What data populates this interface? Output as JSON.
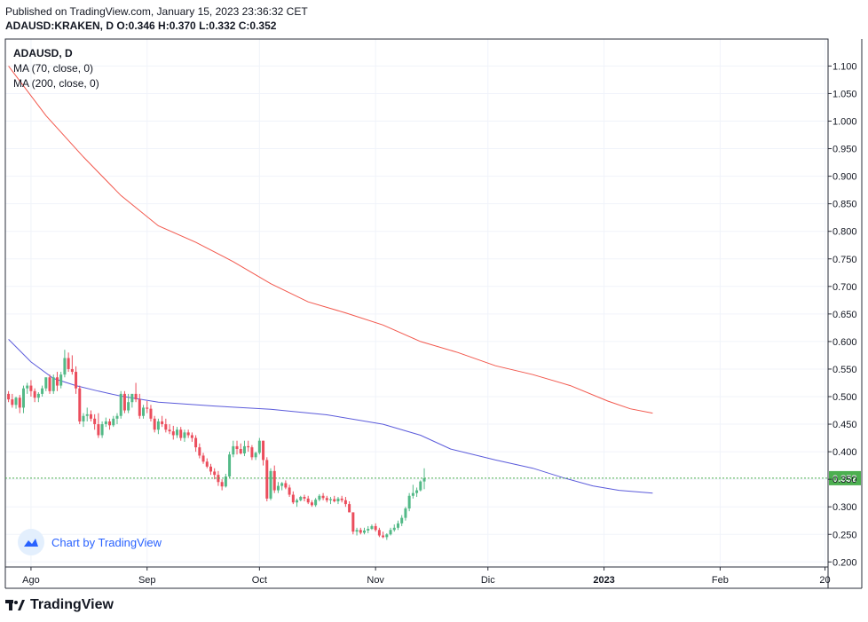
{
  "header": {
    "published": "Published on TradingView.com, January 15, 2023 23:36:32 CET",
    "symbol_exchange": "ADAUSD:KRAKEN, D",
    "ohlc": "O:0.346 H:0.370 L:0.332 C:0.352"
  },
  "legend": {
    "title": "ADAUSD, D",
    "ma70": "MA (70, close, 0)",
    "ma200": "MA (200, close, 0)"
  },
  "watermark": {
    "text": "Chart by TradingView"
  },
  "brand": {
    "text": "TradingView"
  },
  "colors": {
    "up": "#26a69a",
    "up_fill": "#53b987",
    "down": "#eb4d5c",
    "ma70": "#5b5bdb",
    "ma200": "#f2574c",
    "last_price_bg": "#4caf50"
  },
  "chart_data": {
    "type": "candlestick",
    "symbol": "ADAUSD",
    "interval": "D",
    "last_price": 0.352,
    "ylim": [
      0.19,
      1.12
    ],
    "y_ticks": [
      "1.100",
      "1.050",
      "1.000",
      "0.950",
      "0.900",
      "0.850",
      "0.800",
      "0.750",
      "0.700",
      "0.650",
      "0.600",
      "0.550",
      "0.500",
      "0.450",
      "0.400",
      "0.350",
      "0.300",
      "0.250",
      "0.200"
    ],
    "x_ticks": [
      {
        "label": "Ago",
        "day": 6
      },
      {
        "label": "Sep",
        "day": 37
      },
      {
        "label": "Oct",
        "day": 67
      },
      {
        "label": "Nov",
        "day": 98
      },
      {
        "label": "Dic",
        "day": 128
      },
      {
        "label": "2023",
        "day": 159
      },
      {
        "label": "Feb",
        "day": 190
      },
      {
        "label": "20",
        "day": 218
      }
    ],
    "candles": [
      [
        0.505,
        0.51,
        0.49,
        0.495
      ],
      [
        0.495,
        0.505,
        0.48,
        0.485
      ],
      [
        0.485,
        0.5,
        0.478,
        0.498
      ],
      [
        0.498,
        0.503,
        0.47,
        0.48
      ],
      [
        0.48,
        0.52,
        0.47,
        0.515
      ],
      [
        0.515,
        0.525,
        0.505,
        0.52
      ],
      [
        0.52,
        0.53,
        0.5,
        0.51
      ],
      [
        0.51,
        0.515,
        0.49,
        0.498
      ],
      [
        0.498,
        0.508,
        0.49,
        0.505
      ],
      [
        0.505,
        0.52,
        0.5,
        0.515
      ],
      [
        0.515,
        0.535,
        0.51,
        0.535
      ],
      [
        0.535,
        0.54,
        0.505,
        0.51
      ],
      [
        0.51,
        0.54,
        0.505,
        0.535
      ],
      [
        0.535,
        0.545,
        0.51,
        0.52
      ],
      [
        0.52,
        0.545,
        0.515,
        0.54
      ],
      [
        0.54,
        0.585,
        0.535,
        0.57
      ],
      [
        0.57,
        0.58,
        0.545,
        0.55
      ],
      [
        0.55,
        0.575,
        0.54,
        0.545
      ],
      [
        0.545,
        0.555,
        0.505,
        0.515
      ],
      [
        0.515,
        0.52,
        0.45,
        0.455
      ],
      [
        0.455,
        0.47,
        0.445,
        0.465
      ],
      [
        0.465,
        0.48,
        0.455,
        0.468
      ],
      [
        0.468,
        0.475,
        0.455,
        0.46
      ],
      [
        0.46,
        0.468,
        0.44,
        0.45
      ],
      [
        0.45,
        0.47,
        0.425,
        0.43
      ],
      [
        0.43,
        0.455,
        0.425,
        0.45
      ],
      [
        0.45,
        0.462,
        0.445,
        0.455
      ],
      [
        0.455,
        0.46,
        0.44,
        0.448
      ],
      [
        0.448,
        0.465,
        0.445,
        0.46
      ],
      [
        0.46,
        0.47,
        0.45,
        0.465
      ],
      [
        0.465,
        0.51,
        0.46,
        0.505
      ],
      [
        0.505,
        0.51,
        0.47,
        0.475
      ],
      [
        0.475,
        0.505,
        0.47,
        0.49
      ],
      [
        0.49,
        0.505,
        0.48,
        0.505
      ],
      [
        0.505,
        0.525,
        0.49,
        0.495
      ],
      [
        0.495,
        0.505,
        0.46,
        0.465
      ],
      [
        0.465,
        0.485,
        0.46,
        0.48
      ],
      [
        0.48,
        0.492,
        0.47,
        0.478
      ],
      [
        0.478,
        0.485,
        0.455,
        0.46
      ],
      [
        0.46,
        0.465,
        0.435,
        0.44
      ],
      [
        0.44,
        0.46,
        0.432,
        0.455
      ],
      [
        0.455,
        0.465,
        0.445,
        0.45
      ],
      [
        0.45,
        0.46,
        0.435,
        0.44
      ],
      [
        0.44,
        0.45,
        0.432,
        0.437
      ],
      [
        0.437,
        0.447,
        0.422,
        0.43
      ],
      [
        0.43,
        0.445,
        0.425,
        0.44
      ],
      [
        0.44,
        0.445,
        0.42,
        0.425
      ],
      [
        0.425,
        0.44,
        0.418,
        0.435
      ],
      [
        0.435,
        0.44,
        0.425,
        0.43
      ],
      [
        0.43,
        0.435,
        0.418,
        0.425
      ],
      [
        0.425,
        0.43,
        0.4,
        0.408
      ],
      [
        0.408,
        0.415,
        0.388,
        0.393
      ],
      [
        0.393,
        0.398,
        0.378,
        0.382
      ],
      [
        0.382,
        0.388,
        0.37,
        0.373
      ],
      [
        0.373,
        0.378,
        0.358,
        0.364
      ],
      [
        0.364,
        0.37,
        0.35,
        0.358
      ],
      [
        0.358,
        0.365,
        0.338,
        0.345
      ],
      [
        0.345,
        0.35,
        0.33,
        0.337
      ],
      [
        0.337,
        0.36,
        0.335,
        0.355
      ],
      [
        0.355,
        0.4,
        0.352,
        0.395
      ],
      [
        0.395,
        0.42,
        0.39,
        0.41
      ],
      [
        0.41,
        0.42,
        0.395,
        0.405
      ],
      [
        0.405,
        0.415,
        0.395,
        0.397
      ],
      [
        0.397,
        0.42,
        0.392,
        0.41
      ],
      [
        0.41,
        0.42,
        0.4,
        0.408
      ],
      [
        0.408,
        0.412,
        0.385,
        0.39
      ],
      [
        0.39,
        0.4,
        0.385,
        0.398
      ],
      [
        0.398,
        0.425,
        0.395,
        0.42
      ],
      [
        0.42,
        0.42,
        0.375,
        0.385
      ],
      [
        0.385,
        0.39,
        0.31,
        0.315
      ],
      [
        0.315,
        0.37,
        0.312,
        0.365
      ],
      [
        0.365,
        0.375,
        0.325,
        0.33
      ],
      [
        0.33,
        0.345,
        0.325,
        0.338
      ],
      [
        0.338,
        0.345,
        0.33,
        0.343
      ],
      [
        0.343,
        0.348,
        0.332,
        0.335
      ],
      [
        0.335,
        0.34,
        0.318,
        0.322
      ],
      [
        0.322,
        0.328,
        0.305,
        0.308
      ],
      [
        0.308,
        0.315,
        0.3,
        0.312
      ],
      [
        0.312,
        0.32,
        0.31,
        0.318
      ],
      [
        0.318,
        0.322,
        0.31,
        0.315
      ],
      [
        0.315,
        0.32,
        0.305,
        0.308
      ],
      [
        0.308,
        0.312,
        0.3,
        0.303
      ],
      [
        0.303,
        0.316,
        0.3,
        0.313
      ],
      [
        0.313,
        0.323,
        0.31,
        0.32
      ],
      [
        0.32,
        0.325,
        0.312,
        0.316
      ],
      [
        0.316,
        0.32,
        0.308,
        0.312
      ],
      [
        0.312,
        0.318,
        0.305,
        0.314
      ],
      [
        0.314,
        0.32,
        0.308,
        0.31
      ],
      [
        0.31,
        0.318,
        0.305,
        0.315
      ],
      [
        0.315,
        0.32,
        0.308,
        0.312
      ],
      [
        0.312,
        0.318,
        0.3,
        0.305
      ],
      [
        0.305,
        0.31,
        0.29,
        0.29
      ],
      [
        0.29,
        0.29,
        0.25,
        0.255
      ],
      [
        0.255,
        0.262,
        0.248,
        0.258
      ],
      [
        0.258,
        0.262,
        0.25,
        0.253
      ],
      [
        0.253,
        0.262,
        0.25,
        0.257
      ],
      [
        0.257,
        0.265,
        0.252,
        0.26
      ],
      [
        0.26,
        0.268,
        0.258,
        0.265
      ],
      [
        0.265,
        0.27,
        0.255,
        0.258
      ],
      [
        0.258,
        0.262,
        0.245,
        0.248
      ],
      [
        0.248,
        0.255,
        0.243,
        0.245
      ],
      [
        0.245,
        0.252,
        0.24,
        0.25
      ],
      [
        0.25,
        0.262,
        0.248,
        0.258
      ],
      [
        0.258,
        0.268,
        0.255,
        0.262
      ],
      [
        0.262,
        0.275,
        0.258,
        0.27
      ],
      [
        0.27,
        0.285,
        0.265,
        0.28
      ],
      [
        0.28,
        0.3,
        0.275,
        0.297
      ],
      [
        0.297,
        0.325,
        0.292,
        0.32
      ],
      [
        0.32,
        0.34,
        0.315,
        0.325
      ],
      [
        0.325,
        0.335,
        0.318,
        0.33
      ],
      [
        0.33,
        0.348,
        0.328,
        0.346
      ],
      [
        0.346,
        0.37,
        0.332,
        0.352
      ]
    ],
    "series": [
      {
        "name": "MA (70, close, 0)",
        "color": "#5b5bdb",
        "points": [
          [
            0,
            0.604
          ],
          [
            6,
            0.563
          ],
          [
            12,
            0.533
          ],
          [
            18,
            0.52
          ],
          [
            24,
            0.51
          ],
          [
            30,
            0.501
          ],
          [
            40,
            0.49
          ],
          [
            55,
            0.483
          ],
          [
            70,
            0.477
          ],
          [
            85,
            0.467
          ],
          [
            100,
            0.45
          ],
          [
            110,
            0.43
          ],
          [
            118,
            0.405
          ],
          [
            130,
            0.385
          ],
          [
            140,
            0.37
          ],
          [
            148,
            0.353
          ],
          [
            156,
            0.338
          ],
          [
            163,
            0.33
          ],
          [
            172,
            0.325
          ]
        ]
      },
      {
        "name": "MA (200, close, 0)",
        "color": "#f2574c",
        "points": [
          [
            0,
            1.1
          ],
          [
            10,
            1.01
          ],
          [
            20,
            0.935
          ],
          [
            30,
            0.865
          ],
          [
            40,
            0.81
          ],
          [
            50,
            0.78
          ],
          [
            60,
            0.745
          ],
          [
            70,
            0.705
          ],
          [
            80,
            0.672
          ],
          [
            90,
            0.652
          ],
          [
            100,
            0.63
          ],
          [
            110,
            0.6
          ],
          [
            120,
            0.58
          ],
          [
            130,
            0.556
          ],
          [
            140,
            0.54
          ],
          [
            150,
            0.52
          ],
          [
            160,
            0.492
          ],
          [
            166,
            0.478
          ],
          [
            172,
            0.47
          ]
        ]
      }
    ]
  }
}
